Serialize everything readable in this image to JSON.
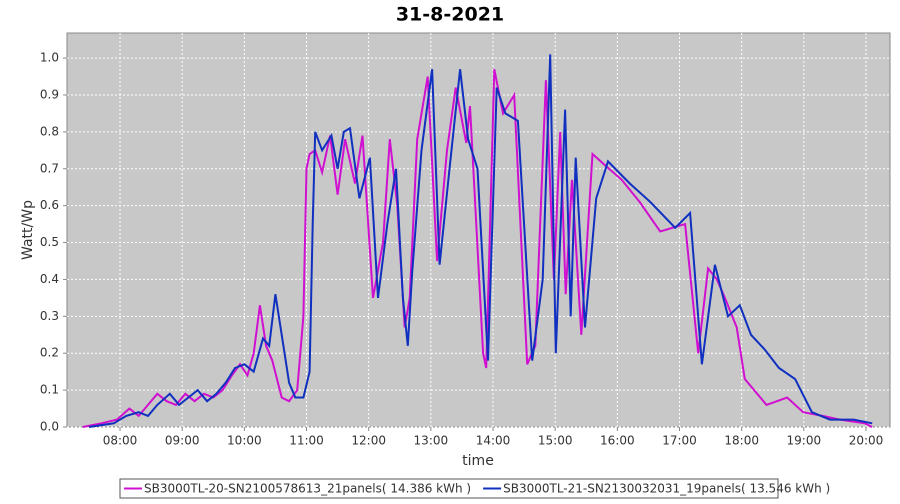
{
  "chart_data": {
    "type": "line",
    "title": "31-8-2021",
    "x_label": "time",
    "y_label": "Watt/Wp",
    "xlim": [
      7.147,
      20.386
    ],
    "ylim": [
      0,
      1.068
    ],
    "xticks": [
      {
        "value": 8,
        "label": "08:00"
      },
      {
        "value": 9,
        "label": "09:00"
      },
      {
        "value": 10,
        "label": "10:00"
      },
      {
        "value": 11,
        "label": "11:00"
      },
      {
        "value": 12,
        "label": "12:00"
      },
      {
        "value": 13,
        "label": "13:00"
      },
      {
        "value": 14,
        "label": "14:00"
      },
      {
        "value": 15,
        "label": "15:00"
      },
      {
        "value": 16,
        "label": "16:00"
      },
      {
        "value": 17,
        "label": "17:00"
      },
      {
        "value": 18,
        "label": "18:00"
      },
      {
        "value": 19,
        "label": "19:00"
      },
      {
        "value": 20,
        "label": "20:00"
      }
    ],
    "yticks": [
      {
        "value": 0,
        "label": "0.0"
      },
      0.1,
      0.2,
      0.3,
      0.4,
      0.5,
      0.6,
      0.7,
      0.8,
      0.9,
      {
        "value": 1,
        "label": "1.0"
      }
    ],
    "grid": true,
    "series": [
      {
        "name": "SB3000TL-20-SN2100578613_21panels( 14.386 kWh )",
        "color": "#d010d0",
        "x": [
          7.4,
          7.7,
          7.95,
          8.15,
          8.3,
          8.45,
          8.6,
          8.75,
          8.9,
          9.05,
          9.2,
          9.35,
          9.5,
          9.65,
          9.8,
          9.93,
          10.05,
          10.15,
          10.25,
          10.35,
          10.45,
          10.6,
          10.72,
          10.85,
          10.95,
          11.0,
          11.05,
          11.14,
          11.25,
          11.38,
          11.5,
          11.62,
          11.78,
          11.9,
          12.07,
          12.23,
          12.34,
          12.46,
          12.58,
          12.66,
          12.78,
          12.95,
          13.1,
          13.26,
          13.4,
          13.57,
          13.63,
          13.84,
          13.89,
          14.02,
          14.16,
          14.34,
          14.55,
          14.68,
          14.85,
          14.98,
          15.08,
          15.17,
          15.27,
          15.42,
          15.6,
          15.8,
          16.07,
          16.36,
          16.69,
          17.09,
          17.3,
          17.46,
          17.6,
          17.73,
          17.92,
          18.05,
          18.4,
          18.73,
          18.99,
          19.3,
          19.58,
          19.98,
          20.1
        ],
        "values": [
          0,
          0.01,
          0.02,
          0.05,
          0.03,
          0.06,
          0.09,
          0.07,
          0.06,
          0.09,
          0.07,
          0.09,
          0.08,
          0.1,
          0.14,
          0.17,
          0.14,
          0.2,
          0.33,
          0.22,
          0.18,
          0.08,
          0.07,
          0.1,
          0.3,
          0.7,
          0.74,
          0.75,
          0.69,
          0.79,
          0.63,
          0.78,
          0.66,
          0.79,
          0.35,
          0.5,
          0.78,
          0.6,
          0.27,
          0.35,
          0.78,
          0.95,
          0.45,
          0.75,
          0.92,
          0.77,
          0.87,
          0.2,
          0.16,
          0.97,
          0.85,
          0.9,
          0.17,
          0.22,
          0.94,
          0.4,
          0.8,
          0.36,
          0.67,
          0.25,
          0.74,
          0.71,
          0.67,
          0.61,
          0.53,
          0.55,
          0.2,
          0.43,
          0.4,
          0.35,
          0.27,
          0.13,
          0.06,
          0.08,
          0.04,
          0.03,
          0.02,
          0.01,
          0.0
        ]
      },
      {
        "name": "SB3000TL-21-SN2130032031_19panels( 13.546 kWh )",
        "color": "#1030c0",
        "x": [
          7.5,
          7.9,
          8.1,
          8.3,
          8.45,
          8.6,
          8.8,
          8.95,
          9.1,
          9.25,
          9.4,
          9.55,
          9.7,
          9.85,
          10.0,
          10.15,
          10.3,
          10.4,
          10.5,
          10.6,
          10.72,
          10.82,
          10.95,
          11.05,
          11.1,
          11.14,
          11.25,
          11.4,
          11.5,
          11.6,
          11.7,
          11.85,
          12.02,
          12.15,
          12.3,
          12.44,
          12.55,
          12.63,
          12.7,
          12.85,
          13.02,
          13.14,
          13.3,
          13.47,
          13.6,
          13.75,
          13.92,
          14.06,
          14.2,
          14.4,
          14.63,
          14.8,
          14.92,
          15.01,
          15.16,
          15.25,
          15.33,
          15.48,
          15.66,
          15.85,
          16.2,
          16.53,
          16.93,
          17.17,
          17.36,
          17.57,
          17.78,
          17.97,
          18.15,
          18.37,
          18.6,
          18.86,
          19.13,
          19.42,
          19.8,
          20.1
        ],
        "values": [
          0,
          0.01,
          0.03,
          0.04,
          0.03,
          0.06,
          0.09,
          0.06,
          0.08,
          0.1,
          0.07,
          0.09,
          0.12,
          0.16,
          0.17,
          0.15,
          0.24,
          0.22,
          0.36,
          0.25,
          0.12,
          0.08,
          0.08,
          0.15,
          0.55,
          0.8,
          0.75,
          0.79,
          0.7,
          0.8,
          0.81,
          0.62,
          0.73,
          0.35,
          0.55,
          0.7,
          0.35,
          0.22,
          0.42,
          0.75,
          0.97,
          0.44,
          0.7,
          0.97,
          0.78,
          0.7,
          0.18,
          0.92,
          0.85,
          0.83,
          0.18,
          0.4,
          1.01,
          0.2,
          0.86,
          0.3,
          0.73,
          0.27,
          0.62,
          0.72,
          0.66,
          0.61,
          0.54,
          0.58,
          0.17,
          0.44,
          0.3,
          0.33,
          0.25,
          0.21,
          0.16,
          0.13,
          0.04,
          0.02,
          0.02,
          0.01
        ]
      }
    ]
  }
}
